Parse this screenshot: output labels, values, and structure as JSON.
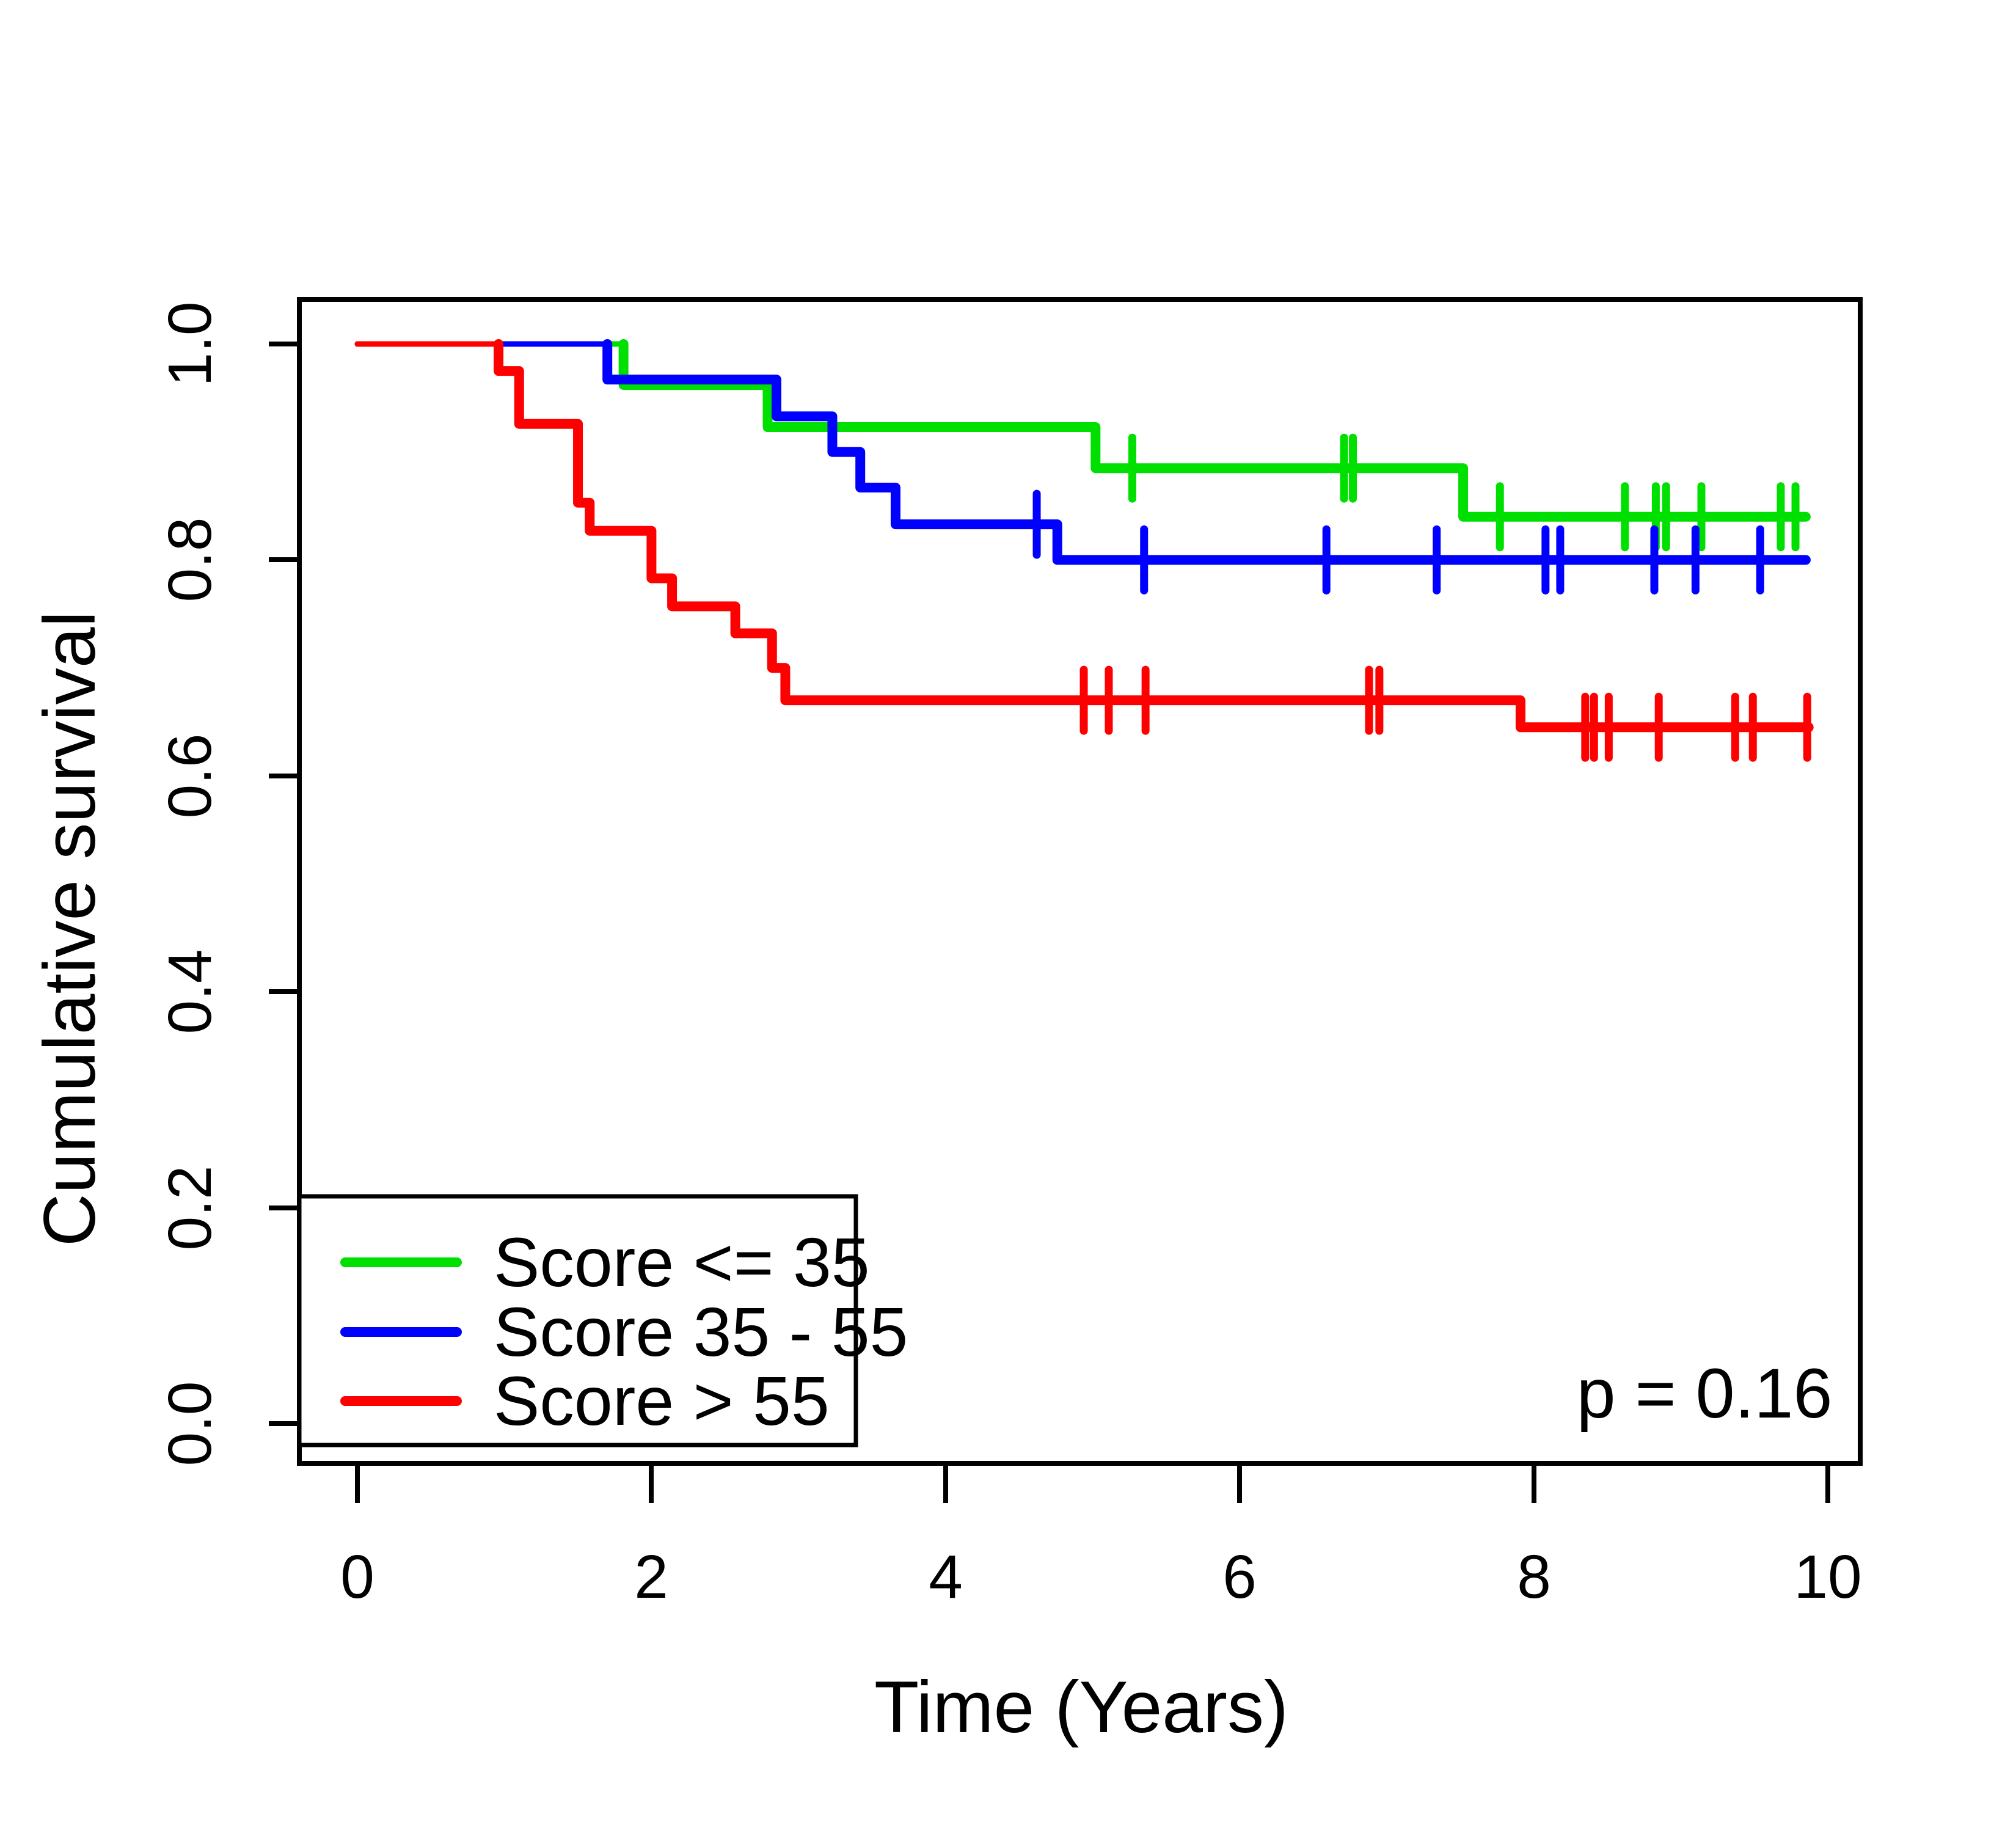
{
  "chart_data": {
    "type": "line",
    "subtype": "kaplan-meier-step-curves",
    "title": "",
    "xlabel": "Time (Years)",
    "ylabel": "Cumulative survival",
    "xlim": [
      0,
      10
    ],
    "ylim": [
      0.0,
      1.0
    ],
    "x_ticks": [
      "0",
      "2",
      "4",
      "6",
      "8",
      "10"
    ],
    "y_ticks": [
      "0.0",
      "0.2",
      "0.4",
      "0.6",
      "0.8",
      "1.0"
    ],
    "grid": "off",
    "legend_position": "bottom-left",
    "annotation": "p = 0.16",
    "series": [
      {
        "name": "Score <= 35",
        "color": "#00E000",
        "steps": [
          [
            0,
            1.0
          ],
          [
            1.81,
            0.962
          ],
          [
            2.79,
            0.923
          ],
          [
            5.02,
            0.885
          ],
          [
            7.52,
            0.84
          ]
        ],
        "end_time": 9.85,
        "censors": [
          [
            5.27,
            0.885
          ],
          [
            6.71,
            0.885
          ],
          [
            6.77,
            0.885
          ],
          [
            7.77,
            0.84
          ],
          [
            8.62,
            0.84
          ],
          [
            8.83,
            0.84
          ],
          [
            8.9,
            0.84
          ],
          [
            9.14,
            0.84
          ],
          [
            9.68,
            0.84
          ],
          [
            9.78,
            0.84
          ]
        ]
      },
      {
        "name": "Score 35 - 55",
        "color": "#0000FF",
        "steps": [
          [
            0,
            1.0
          ],
          [
            1.7,
            0.967
          ],
          [
            2.85,
            0.933
          ],
          [
            3.23,
            0.9
          ],
          [
            3.42,
            0.867
          ],
          [
            3.66,
            0.833
          ],
          [
            4.76,
            0.8
          ]
        ],
        "end_time": 9.85,
        "censors": [
          [
            4.62,
            0.833
          ],
          [
            5.35,
            0.8
          ],
          [
            6.59,
            0.8
          ],
          [
            7.34,
            0.8
          ],
          [
            8.08,
            0.8
          ],
          [
            8.18,
            0.8
          ],
          [
            8.82,
            0.8
          ],
          [
            9.1,
            0.8
          ],
          [
            9.54,
            0.8
          ]
        ]
      },
      {
        "name": "Score > 55",
        "color": "#FF0000",
        "steps": [
          [
            0,
            1.0
          ],
          [
            0.96,
            0.975
          ],
          [
            1.1,
            0.926
          ],
          [
            1.5,
            0.853
          ],
          [
            1.58,
            0.827
          ],
          [
            2.0,
            0.783
          ],
          [
            2.14,
            0.757
          ],
          [
            2.57,
            0.732
          ],
          [
            2.82,
            0.7
          ],
          [
            2.91,
            0.67
          ],
          [
            7.91,
            0.645
          ]
        ],
        "end_time": 9.87,
        "censors": [
          [
            4.94,
            0.67
          ],
          [
            5.11,
            0.67
          ],
          [
            5.36,
            0.67
          ],
          [
            6.88,
            0.67
          ],
          [
            6.95,
            0.67
          ],
          [
            8.35,
            0.645
          ],
          [
            8.41,
            0.645
          ],
          [
            8.51,
            0.645
          ],
          [
            8.85,
            0.645
          ],
          [
            9.37,
            0.645
          ],
          [
            9.49,
            0.645
          ],
          [
            9.86,
            0.645
          ]
        ]
      }
    ]
  }
}
